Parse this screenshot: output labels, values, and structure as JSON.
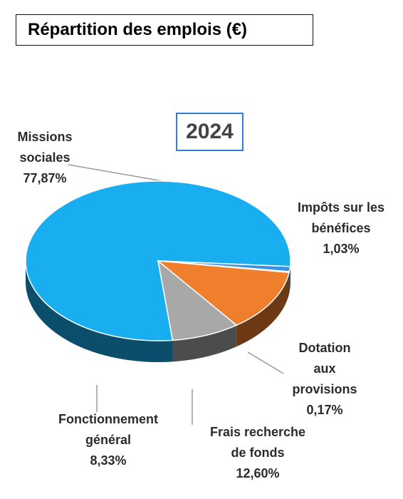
{
  "title": "Répartition des emplois (€)",
  "year": "2024",
  "chart_data": {
    "type": "pie",
    "title": "Répartition des emplois (€)",
    "subtitle": "2024",
    "slices": [
      {
        "name": "Missions sociales",
        "name_lines": [
          "Missions",
          "sociales"
        ],
        "value": 77.87,
        "label": "77,87%",
        "color": "#19aef0"
      },
      {
        "name": "Impôts sur les bénéfices",
        "name_lines": [
          "Impôts sur les",
          "bénéfices"
        ],
        "value": 1.03,
        "label": "1,03%",
        "color": "#3c92e0"
      },
      {
        "name": "Dotation aux provisions",
        "name_lines": [
          "Dotation",
          "aux",
          "provisions"
        ],
        "value": 0.17,
        "label": "0,17%",
        "color": "#1f5fa6"
      },
      {
        "name": "Frais recherche de fonds",
        "name_lines": [
          "Frais recherche",
          "de fonds"
        ],
        "value": 12.6,
        "label": "12,60%",
        "color": "#f07f2d"
      },
      {
        "name": "Fonctionnement général",
        "name_lines": [
          "Fonctionnement",
          "général"
        ],
        "value": 8.33,
        "label": "8,33%",
        "color": "#a8a8a8"
      }
    ]
  }
}
